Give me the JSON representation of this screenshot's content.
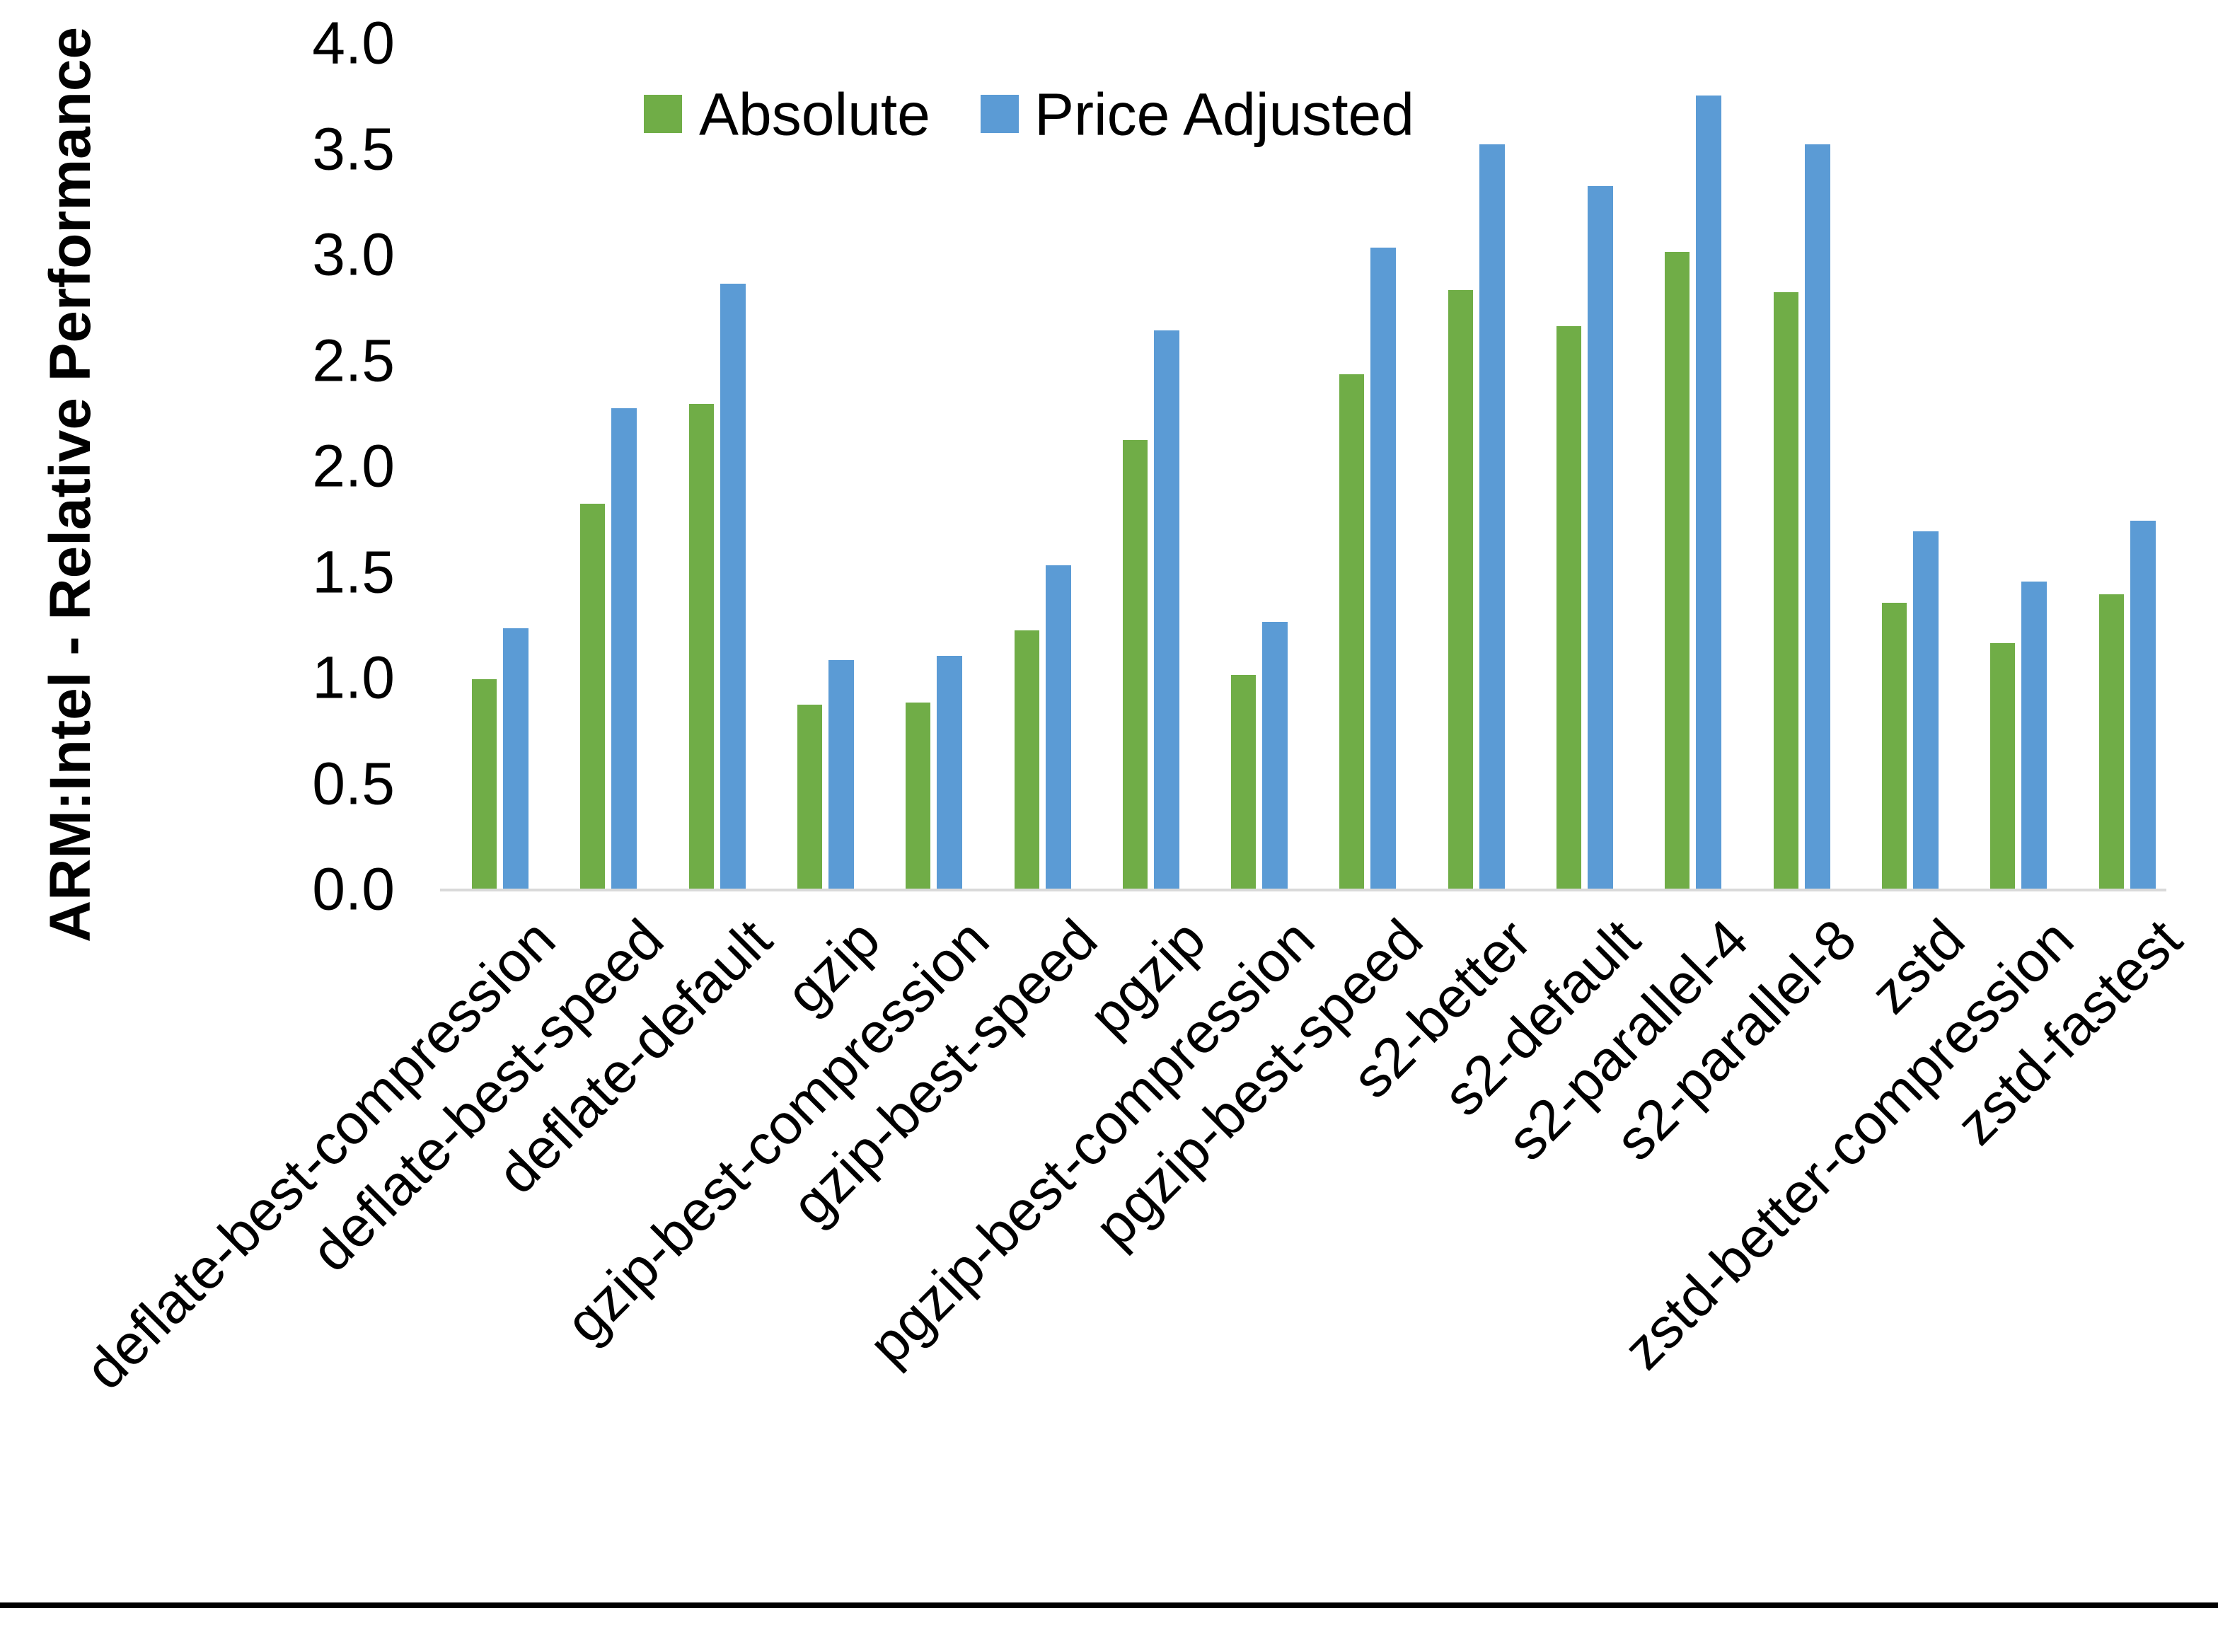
{
  "chart_data": {
    "type": "bar",
    "title": "",
    "xlabel": "",
    "ylabel": "ARM:Intel - Relative Performance",
    "ylim": [
      0.0,
      4.0
    ],
    "ytick_step": 0.5,
    "yticks": [
      "0.0",
      "0.5",
      "1.0",
      "1.5",
      "2.0",
      "2.5",
      "3.0",
      "3.5",
      "4.0"
    ],
    "grid": false,
    "legend_position": "top-center",
    "background_color": "#ffffff",
    "axis_line_color": "#d9d9d9",
    "text_color": "#000000",
    "categories": [
      "deflate-best-compression",
      "deflate-best-speed",
      "deflate-default",
      "gzip",
      "gzip-best-compression",
      "gzip-best-speed",
      "pgzip",
      "pgzip-best-compression",
      "pgzip-best-speed",
      "s2-better",
      "s2-default",
      "s2-parallel-4",
      "s2-parallel-8",
      "zstd",
      "zstd-better-compression",
      "zstd-fastest"
    ],
    "series": [
      {
        "name": "Absolute",
        "color": "#70AD47",
        "values": [
          0.99,
          1.82,
          2.29,
          0.87,
          0.88,
          1.22,
          2.12,
          1.01,
          2.43,
          2.83,
          2.66,
          3.01,
          2.82,
          1.35,
          1.16,
          1.39
        ]
      },
      {
        "name": "Price Adjusted",
        "color": "#5B9BD5",
        "values": [
          1.23,
          2.27,
          2.86,
          1.08,
          1.1,
          1.53,
          2.64,
          1.26,
          3.03,
          3.52,
          3.32,
          3.75,
          3.52,
          1.69,
          1.45,
          1.74
        ]
      }
    ]
  }
}
